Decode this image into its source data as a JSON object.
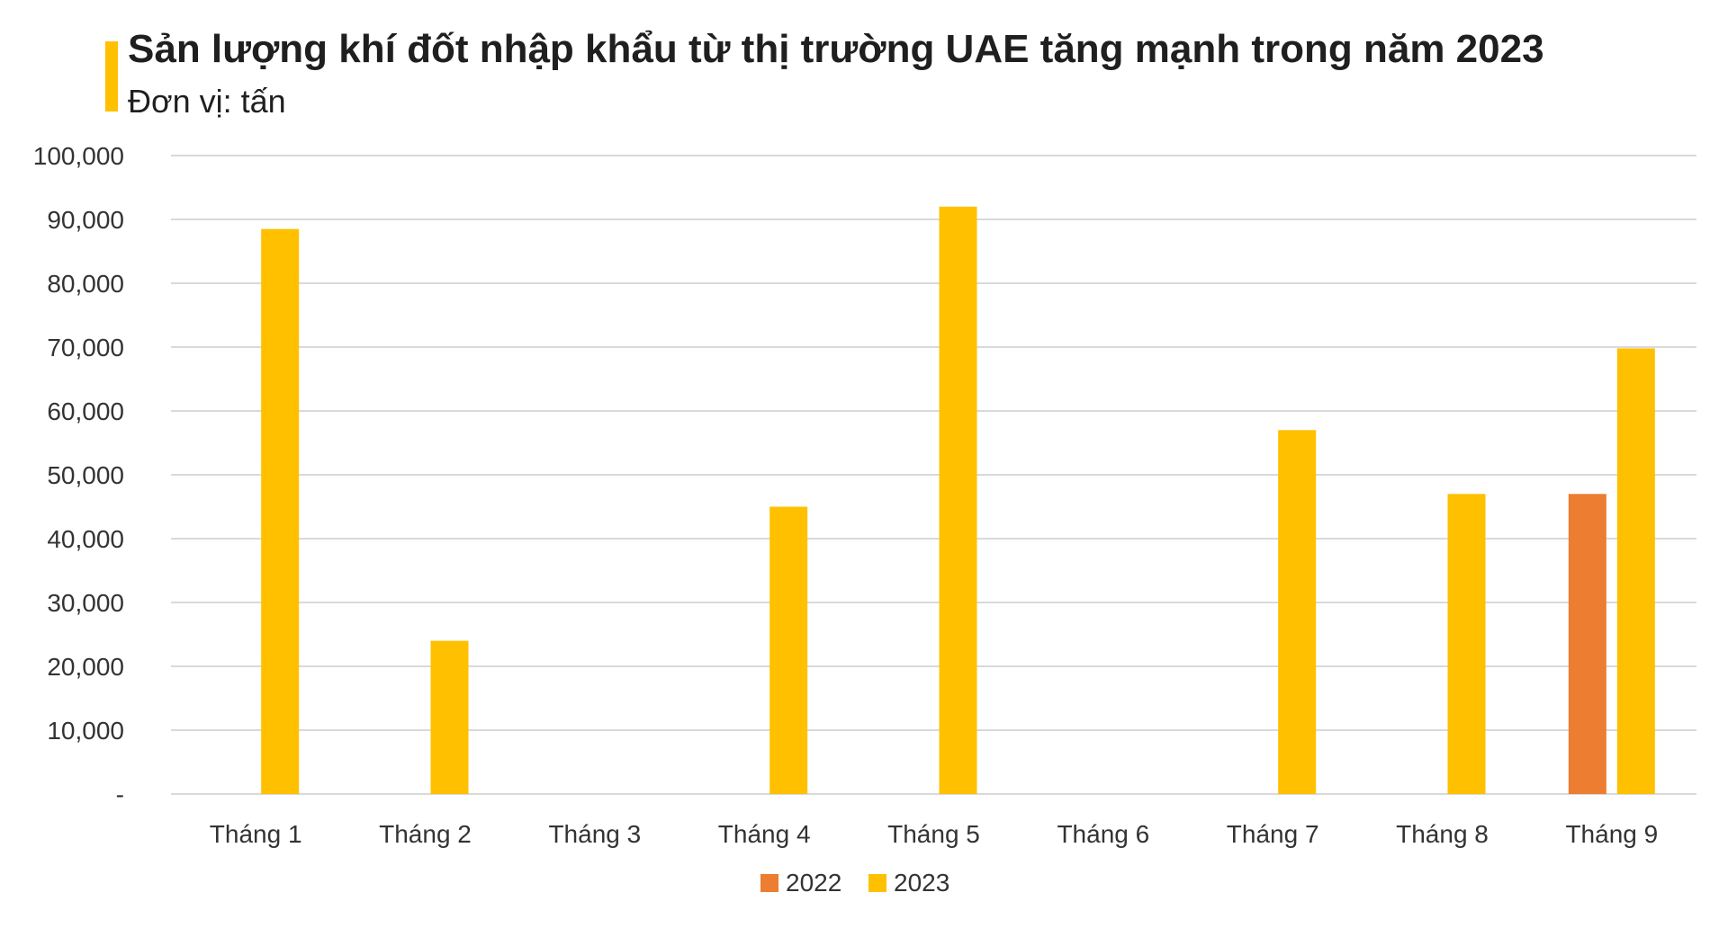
{
  "title": "Sản lượng khí đốt nhập khẩu từ thị trường UAE tăng mạnh trong năm 2023",
  "subtitle": "Đơn vị: tấn",
  "colors": {
    "accent": "#FFC000",
    "series_2022": "#ED7D31",
    "series_2023": "#FFC000",
    "grid": "#D9D9D9"
  },
  "chart_data": {
    "type": "bar",
    "title": "Sản lượng khí đốt nhập khẩu từ thị trường UAE tăng mạnh trong năm 2023",
    "subtitle": "Đơn vị: tấn",
    "categories": [
      "Tháng 1",
      "Tháng 2",
      "Tháng 3",
      "Tháng 4",
      "Tháng 5",
      "Tháng 6",
      "Tháng 7",
      "Tháng 8",
      "Tháng 9"
    ],
    "series": [
      {
        "name": "2022",
        "color": "#ED7D31",
        "values": [
          0,
          0,
          0,
          0,
          0,
          0,
          0,
          0,
          47000
        ]
      },
      {
        "name": "2023",
        "color": "#FFC000",
        "values": [
          88500,
          24000,
          0,
          45000,
          92000,
          0,
          57000,
          47000,
          69800
        ]
      }
    ],
    "ylim": [
      0,
      100000
    ],
    "yticks": [
      0,
      10000,
      20000,
      30000,
      40000,
      50000,
      60000,
      70000,
      80000,
      90000,
      100000
    ],
    "ytick_labels": [
      "-",
      "10,000",
      "20,000",
      "30,000",
      "40,000",
      "50,000",
      "60,000",
      "70,000",
      "80,000",
      "90,000",
      "100,000"
    ],
    "grid": true,
    "legend": "bottom"
  }
}
